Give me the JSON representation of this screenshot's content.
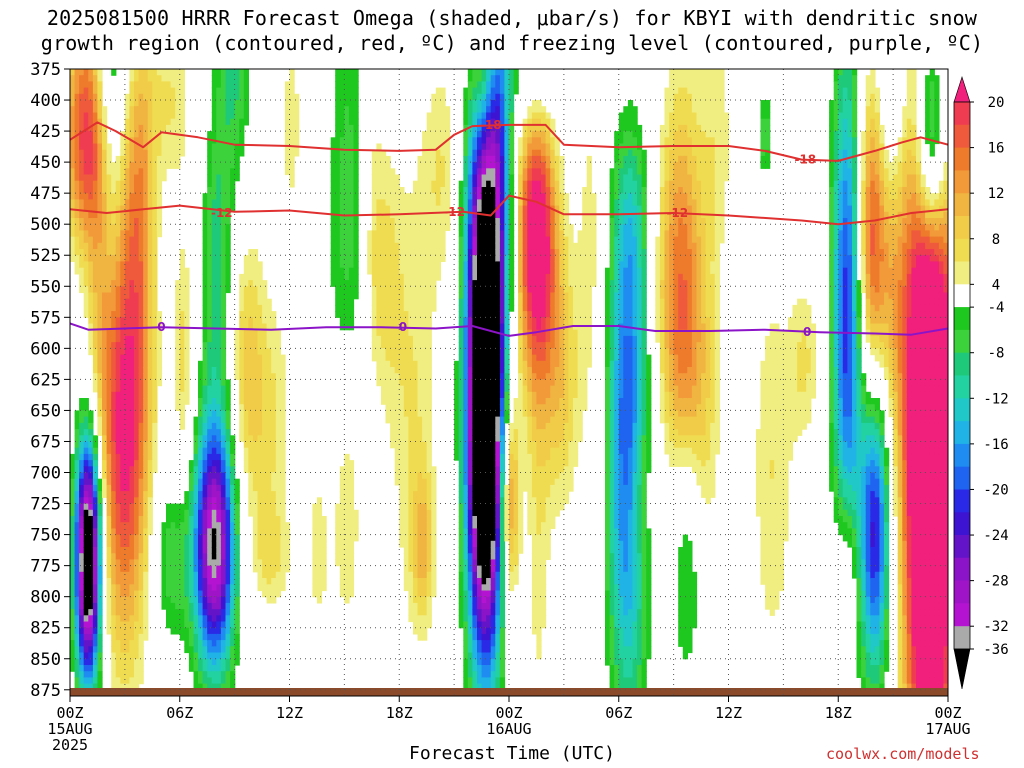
{
  "title_line1": "2025081500 HRRR Forecast Omega (shaded, μbar/s) for KBYI with dendritic snow",
  "title_line2": "growth region (contoured, red, ºC) and freezing level (contoured, purple, ºC)",
  "x_axis_title": "Forecast Time (UTC)",
  "credit": "coolwx.com/models",
  "x_labels": [
    {
      "text": "00Z",
      "sub": [
        "15AUG",
        "2025"
      ],
      "hour": 0
    },
    {
      "text": "06Z",
      "sub": [],
      "hour": 6
    },
    {
      "text": "12Z",
      "sub": [],
      "hour": 12
    },
    {
      "text": "18Z",
      "sub": [],
      "hour": 18
    },
    {
      "text": "00Z",
      "sub": [
        "16AUG"
      ],
      "hour": 24
    },
    {
      "text": "06Z",
      "sub": [],
      "hour": 30
    },
    {
      "text": "12Z",
      "sub": [],
      "hour": 36
    },
    {
      "text": "18Z",
      "sub": [],
      "hour": 42
    },
    {
      "text": "00Z",
      "sub": [
        "17AUG"
      ],
      "hour": 48
    }
  ],
  "chart_data": {
    "type": "heatmap",
    "x_unit": "forecast hour",
    "xlim": [
      0,
      48
    ],
    "y_unit": "pressure (mb)",
    "ylim": [
      375,
      880
    ],
    "y_ticks": [
      375,
      400,
      425,
      450,
      475,
      500,
      525,
      550,
      575,
      600,
      625,
      650,
      675,
      700,
      725,
      750,
      775,
      800,
      825,
      850,
      875
    ],
    "colorbar": {
      "labels": [
        "20",
        "16",
        "12",
        "8",
        "4",
        "-4",
        "-8",
        "-12",
        "-16",
        "-20",
        "-24",
        "-28",
        "-32",
        "-36"
      ],
      "bins": [
        {
          "lo": 20,
          "hi": 99,
          "color": "#f0207c"
        },
        {
          "lo": 18,
          "hi": 20,
          "color": "#f03c50"
        },
        {
          "lo": 16,
          "hi": 18,
          "color": "#f05a3c"
        },
        {
          "lo": 14,
          "hi": 16,
          "color": "#ee7a2c"
        },
        {
          "lo": 12,
          "hi": 14,
          "color": "#f29a3a"
        },
        {
          "lo": 10,
          "hi": 12,
          "color": "#f0b440"
        },
        {
          "lo": 8,
          "hi": 10,
          "color": "#f0cc48"
        },
        {
          "lo": 6,
          "hi": 8,
          "color": "#f0dc50"
        },
        {
          "lo": 4,
          "hi": 6,
          "color": "#f0ee80"
        },
        {
          "lo": -4,
          "hi": 4,
          "color": "#ffffff"
        },
        {
          "lo": -6,
          "hi": -4,
          "color": "#1ec81e"
        },
        {
          "lo": -8,
          "hi": -6,
          "color": "#3cd23c"
        },
        {
          "lo": -10,
          "hi": -8,
          "color": "#1eca7a"
        },
        {
          "lo": -12,
          "hi": -10,
          "color": "#22d2a0"
        },
        {
          "lo": -14,
          "hi": -12,
          "color": "#20c8c8"
        },
        {
          "lo": -16,
          "hi": -14,
          "color": "#20b4e6"
        },
        {
          "lo": -18,
          "hi": -16,
          "color": "#1e8cf0"
        },
        {
          "lo": -20,
          "hi": -18,
          "color": "#1e64f0"
        },
        {
          "lo": -22,
          "hi": -20,
          "color": "#2a2ae6"
        },
        {
          "lo": -24,
          "hi": -22,
          "color": "#3c14d2"
        },
        {
          "lo": -26,
          "hi": -24,
          "color": "#6414c8"
        },
        {
          "lo": -28,
          "hi": -26,
          "color": "#8c14c8"
        },
        {
          "lo": -30,
          "hi": -28,
          "color": "#a014c8"
        },
        {
          "lo": -32,
          "hi": -30,
          "color": "#b414d2"
        },
        {
          "lo": -34,
          "hi": -32,
          "color": "#aaaaaa"
        },
        {
          "lo": -99,
          "hi": -34,
          "color": "#000000"
        }
      ]
    },
    "omega_features": [
      {
        "t": 1.0,
        "p": 440,
        "sx": 1.0,
        "sy": 60,
        "amp": 16
      },
      {
        "t": 0.9,
        "p": 330,
        "sx": 0.7,
        "sy": 90,
        "amp": 7
      },
      {
        "t": 2.3,
        "p": 400,
        "sx": 0.7,
        "sy": 110,
        "amp": -14
      },
      {
        "t": 3.0,
        "p": 660,
        "sx": 1.0,
        "sy": 130,
        "amp": 22
      },
      {
        "t": 3.2,
        "p": 450,
        "sx": 0.8,
        "sy": 90,
        "amp": 7
      },
      {
        "t": 1.0,
        "p": 770,
        "sx": 0.5,
        "sy": 70,
        "amp": -44
      },
      {
        "t": 1.6,
        "p": 560,
        "sx": 0.5,
        "sy": 90,
        "amp": 6
      },
      {
        "t": 4.0,
        "p": 470,
        "sx": 0.5,
        "sy": 100,
        "amp": 5
      },
      {
        "t": 5.5,
        "p": 400,
        "sx": 0.9,
        "sy": 50,
        "amp": 6
      },
      {
        "t": 6.2,
        "p": 610,
        "sx": 0.4,
        "sy": 80,
        "amp": 7
      },
      {
        "t": 5.5,
        "p": 770,
        "sx": 0.8,
        "sy": 50,
        "amp": -8
      },
      {
        "t": 7.9,
        "p": 760,
        "sx": 0.8,
        "sy": 70,
        "amp": -34
      },
      {
        "t": 8.0,
        "p": 540,
        "sx": 0.6,
        "sy": 90,
        "amp": -9
      },
      {
        "t": 9.0,
        "p": 330,
        "sx": 0.7,
        "sy": 110,
        "amp": -10
      },
      {
        "t": 9.6,
        "p": 610,
        "sx": 0.7,
        "sy": 90,
        "amp": 8
      },
      {
        "t": 11.0,
        "p": 660,
        "sx": 0.9,
        "sy": 80,
        "amp": 6
      },
      {
        "t": 11.0,
        "p": 770,
        "sx": 0.8,
        "sy": 30,
        "amp": 5
      },
      {
        "t": 12.1,
        "p": 420,
        "sx": 0.5,
        "sy": 70,
        "amp": 5
      },
      {
        "t": 13.6,
        "p": 760,
        "sx": 0.6,
        "sy": 80,
        "amp": 5
      },
      {
        "t": 15.3,
        "p": 530,
        "sx": 0.9,
        "sy": 180,
        "amp": -8
      },
      {
        "t": 15.2,
        "p": 720,
        "sx": 0.6,
        "sy": 90,
        "amp": 10
      },
      {
        "t": 16.4,
        "p": 480,
        "sx": 0.5,
        "sy": 130,
        "amp": 5
      },
      {
        "t": 17.2,
        "p": 540,
        "sx": 0.7,
        "sy": 80,
        "amp": 6
      },
      {
        "t": 18.8,
        "p": 660,
        "sx": 1.0,
        "sy": 150,
        "amp": 6
      },
      {
        "t": 19.3,
        "p": 760,
        "sx": 0.4,
        "sy": 40,
        "amp": 8
      },
      {
        "t": 20.5,
        "p": 455,
        "sx": 0.9,
        "sy": 70,
        "amp": 6
      },
      {
        "t": 22.6,
        "p": 380,
        "sx": 0.4,
        "sy": 40,
        "amp": 6
      },
      {
        "t": 22.7,
        "p": 660,
        "sx": 0.7,
        "sy": 130,
        "amp": -56
      },
      {
        "t": 22.7,
        "p": 470,
        "sx": 0.9,
        "sy": 80,
        "amp": -14
      },
      {
        "t": 23.5,
        "p": 390,
        "sx": 0.5,
        "sy": 130,
        "amp": -10
      },
      {
        "t": 24.0,
        "p": 720,
        "sx": 0.4,
        "sy": 60,
        "amp": 18
      },
      {
        "t": 25.5,
        "p": 500,
        "sx": 0.8,
        "sy": 90,
        "amp": 26
      },
      {
        "t": 25.6,
        "p": 760,
        "sx": 0.5,
        "sy": 130,
        "amp": 5
      },
      {
        "t": 25.5,
        "p": 360,
        "sx": 0.9,
        "sy": 70,
        "amp": -12
      },
      {
        "t": 26.9,
        "p": 630,
        "sx": 0.7,
        "sy": 80,
        "amp": 8
      },
      {
        "t": 28.5,
        "p": 520,
        "sx": 0.6,
        "sy": 130,
        "amp": 5
      },
      {
        "t": 30.5,
        "p": 690,
        "sx": 0.8,
        "sy": 140,
        "amp": -22
      },
      {
        "t": 31.0,
        "p": 500,
        "sx": 0.9,
        "sy": 60,
        "amp": -8
      },
      {
        "t": 31.0,
        "p": 720,
        "sx": 0.6,
        "sy": 50,
        "amp": 6
      },
      {
        "t": 33.5,
        "p": 590,
        "sx": 0.8,
        "sy": 140,
        "amp": 15
      },
      {
        "t": 32.1,
        "p": 520,
        "sx": 0.9,
        "sy": 80,
        "amp": 6
      },
      {
        "t": 33.7,
        "p": 760,
        "sx": 0.7,
        "sy": 80,
        "amp": -13
      },
      {
        "t": 34.7,
        "p": 660,
        "sx": 0.7,
        "sy": 100,
        "amp": 6
      },
      {
        "t": 35.4,
        "p": 430,
        "sx": 0.7,
        "sy": 80,
        "amp": 5
      },
      {
        "t": 38.4,
        "p": 700,
        "sx": 0.9,
        "sy": 130,
        "amp": 6
      },
      {
        "t": 38.0,
        "p": 430,
        "sx": 0.3,
        "sy": 30,
        "amp": -8
      },
      {
        "t": 40.2,
        "p": 610,
        "sx": 0.6,
        "sy": 50,
        "amp": 6
      },
      {
        "t": 42.5,
        "p": 570,
        "sx": 0.6,
        "sy": 150,
        "amp": -22
      },
      {
        "t": 42.5,
        "p": 780,
        "sx": 0.5,
        "sy": 50,
        "amp": 8
      },
      {
        "t": 43.8,
        "p": 520,
        "sx": 0.6,
        "sy": 100,
        "amp": 18
      },
      {
        "t": 44.0,
        "p": 740,
        "sx": 0.6,
        "sy": 90,
        "amp": -24
      },
      {
        "t": 45.0,
        "p": 520,
        "sx": 0.6,
        "sy": 120,
        "amp": 8
      },
      {
        "t": 44.9,
        "p": 390,
        "sx": 0.6,
        "sy": 80,
        "amp": -10
      },
      {
        "t": 47.0,
        "p": 680,
        "sx": 1.0,
        "sy": 220,
        "amp": 38
      },
      {
        "t": 47.1,
        "p": 430,
        "sx": 0.6,
        "sy": 70,
        "amp": -26
      }
    ],
    "contours": [
      {
        "label": "-18",
        "color": "#e03030",
        "points": [
          [
            0,
            432
          ],
          [
            1.5,
            418
          ],
          [
            2.5,
            425
          ],
          [
            4.0,
            438
          ],
          [
            5.0,
            426
          ],
          [
            7.0,
            430
          ],
          [
            9.0,
            436
          ],
          [
            12.0,
            437
          ],
          [
            15.0,
            440
          ],
          [
            18.0,
            441
          ],
          [
            20.0,
            440
          ],
          [
            21.0,
            428
          ],
          [
            22.0,
            421
          ],
          [
            24.0,
            420
          ],
          [
            26.0,
            420
          ],
          [
            27.0,
            436
          ],
          [
            30.0,
            438
          ],
          [
            33.0,
            437
          ],
          [
            36.0,
            437
          ],
          [
            38.0,
            441
          ],
          [
            40.0,
            448
          ],
          [
            42.0,
            449
          ],
          [
            44.0,
            441
          ],
          [
            45.5,
            434
          ],
          [
            46.5,
            430
          ],
          [
            48.0,
            436
          ]
        ],
        "label_positions": [
          [
            23.0,
            420
          ],
          [
            40.2,
            448
          ]
        ]
      },
      {
        "label": "-12",
        "color": "#e03030",
        "points": [
          [
            0,
            488
          ],
          [
            2.0,
            491
          ],
          [
            4.0,
            488
          ],
          [
            6.0,
            485
          ],
          [
            9.0,
            490
          ],
          [
            12.0,
            489
          ],
          [
            15.0,
            493
          ],
          [
            18.0,
            492
          ],
          [
            21.5,
            490
          ],
          [
            23.0,
            493
          ],
          [
            24.0,
            477
          ],
          [
            25.5,
            482
          ],
          [
            27.0,
            492
          ],
          [
            30.0,
            492
          ],
          [
            33.0,
            491
          ],
          [
            36.0,
            493
          ],
          [
            40.0,
            497
          ],
          [
            42.0,
            500
          ],
          [
            44.0,
            497
          ],
          [
            46.0,
            491
          ],
          [
            48.0,
            488
          ]
        ],
        "label_positions": [
          [
            8.3,
            491
          ],
          [
            21.0,
            490
          ],
          [
            33.2,
            491
          ]
        ]
      },
      {
        "label": "0",
        "color": "#8c14c8",
        "points": [
          [
            0,
            580
          ],
          [
            1.0,
            585
          ],
          [
            3.0,
            584
          ],
          [
            5.0,
            583
          ],
          [
            8.0,
            584
          ],
          [
            11.0,
            585
          ],
          [
            14.0,
            583
          ],
          [
            17.0,
            583
          ],
          [
            20.0,
            584
          ],
          [
            22.0,
            582
          ],
          [
            24.0,
            590
          ],
          [
            25.5,
            587
          ],
          [
            27.5,
            582
          ],
          [
            30.0,
            582
          ],
          [
            32.0,
            586
          ],
          [
            35.0,
            586
          ],
          [
            38.0,
            585
          ],
          [
            41.0,
            587
          ],
          [
            44.0,
            588
          ],
          [
            46.0,
            589
          ],
          [
            48.0,
            584
          ]
        ],
        "label_positions": [
          [
            5.0,
            583
          ],
          [
            18.2,
            583
          ],
          [
            40.3,
            587
          ]
        ]
      }
    ]
  }
}
